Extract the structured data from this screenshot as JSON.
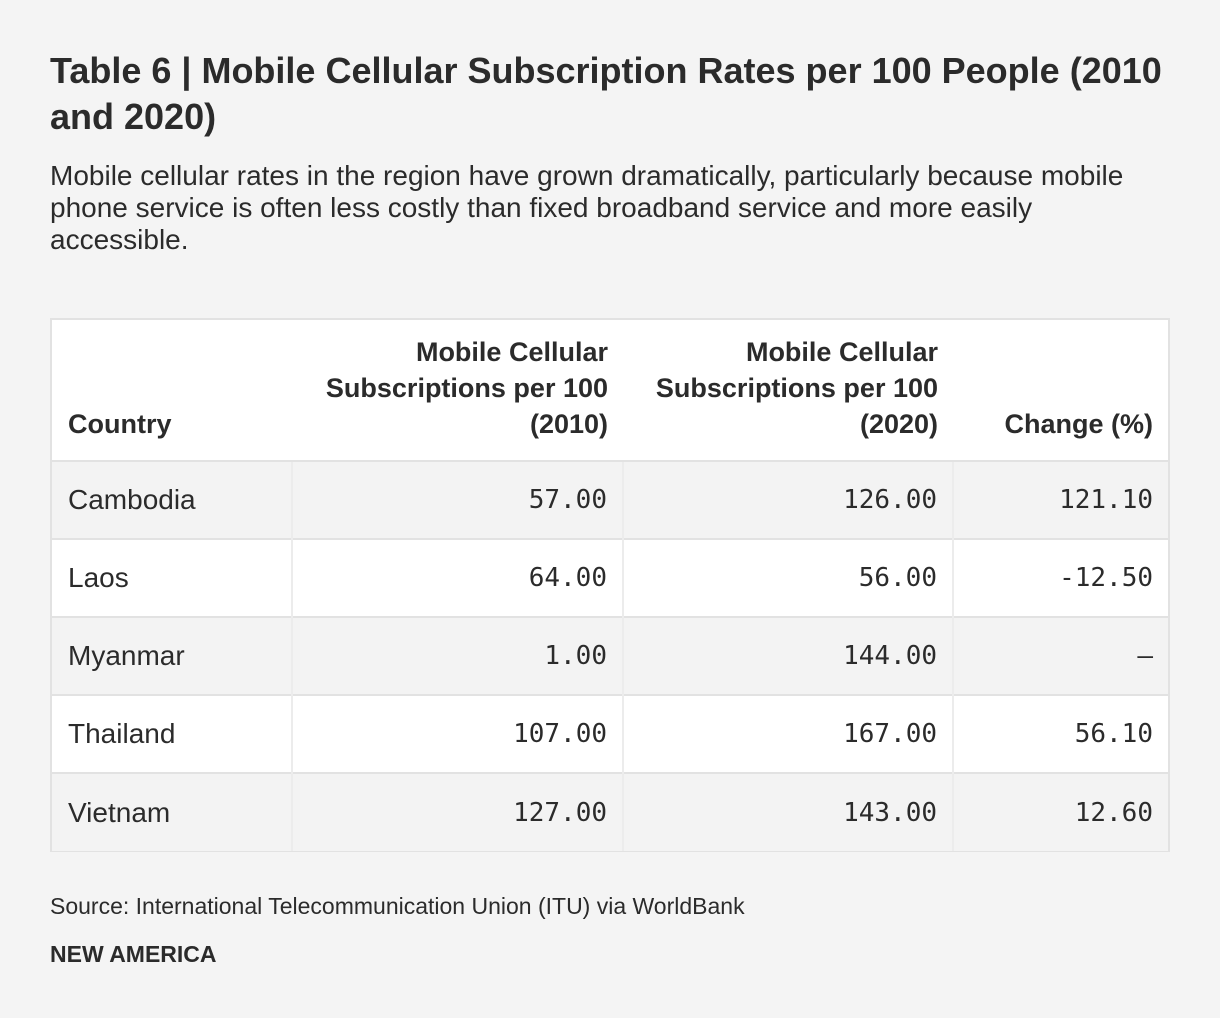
{
  "chart_data": {
    "type": "table",
    "title": "Table 6 | Mobile Cellular Subscription Rates per 100 People (2010 and 2020)",
    "subtitle": "Mobile cellular rates in the region have grown dramatically, particularly because mobile phone service is often less costly than fixed broadband service and more easily accessible.",
    "columns": [
      "Country",
      "Mobile Cellular Subscriptions per 100 (2010)",
      "Mobile Cellular Subscriptions per 100 (2020)",
      "Change (%)"
    ],
    "rows": [
      [
        "Cambodia",
        "57.00",
        "126.00",
        "121.10"
      ],
      [
        "Laos",
        "64.00",
        "56.00",
        "-12.50"
      ],
      [
        "Myanmar",
        "1.00",
        "144.00",
        "—"
      ],
      [
        "Thailand",
        "107.00",
        "167.00",
        "56.10"
      ],
      [
        "Vietnam",
        "127.00",
        "143.00",
        "12.60"
      ]
    ],
    "source": "Source: International Telecommunication Union (ITU) via WorldBank"
  },
  "footer": {
    "brand": "NEW AMERICA"
  }
}
